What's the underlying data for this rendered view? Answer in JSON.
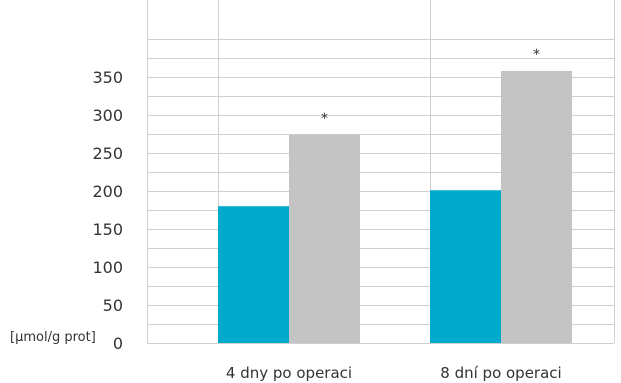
{
  "chart_data": {
    "type": "bar",
    "categories": [
      "4 dny po operaci",
      "8 dní po operaci"
    ],
    "series": [
      {
        "values": [
          180,
          201
        ],
        "color": "#00aacc"
      },
      {
        "values": [
          274,
          358
        ],
        "color": "#c4c4c4"
      }
    ],
    "annotations": [
      "*",
      "*"
    ],
    "ylabel": "[µmol/g prot]",
    "yticks": [
      0,
      50,
      100,
      150,
      200,
      250,
      300,
      350
    ],
    "ylim": [
      0,
      400
    ],
    "grid": true,
    "legend": "none"
  }
}
